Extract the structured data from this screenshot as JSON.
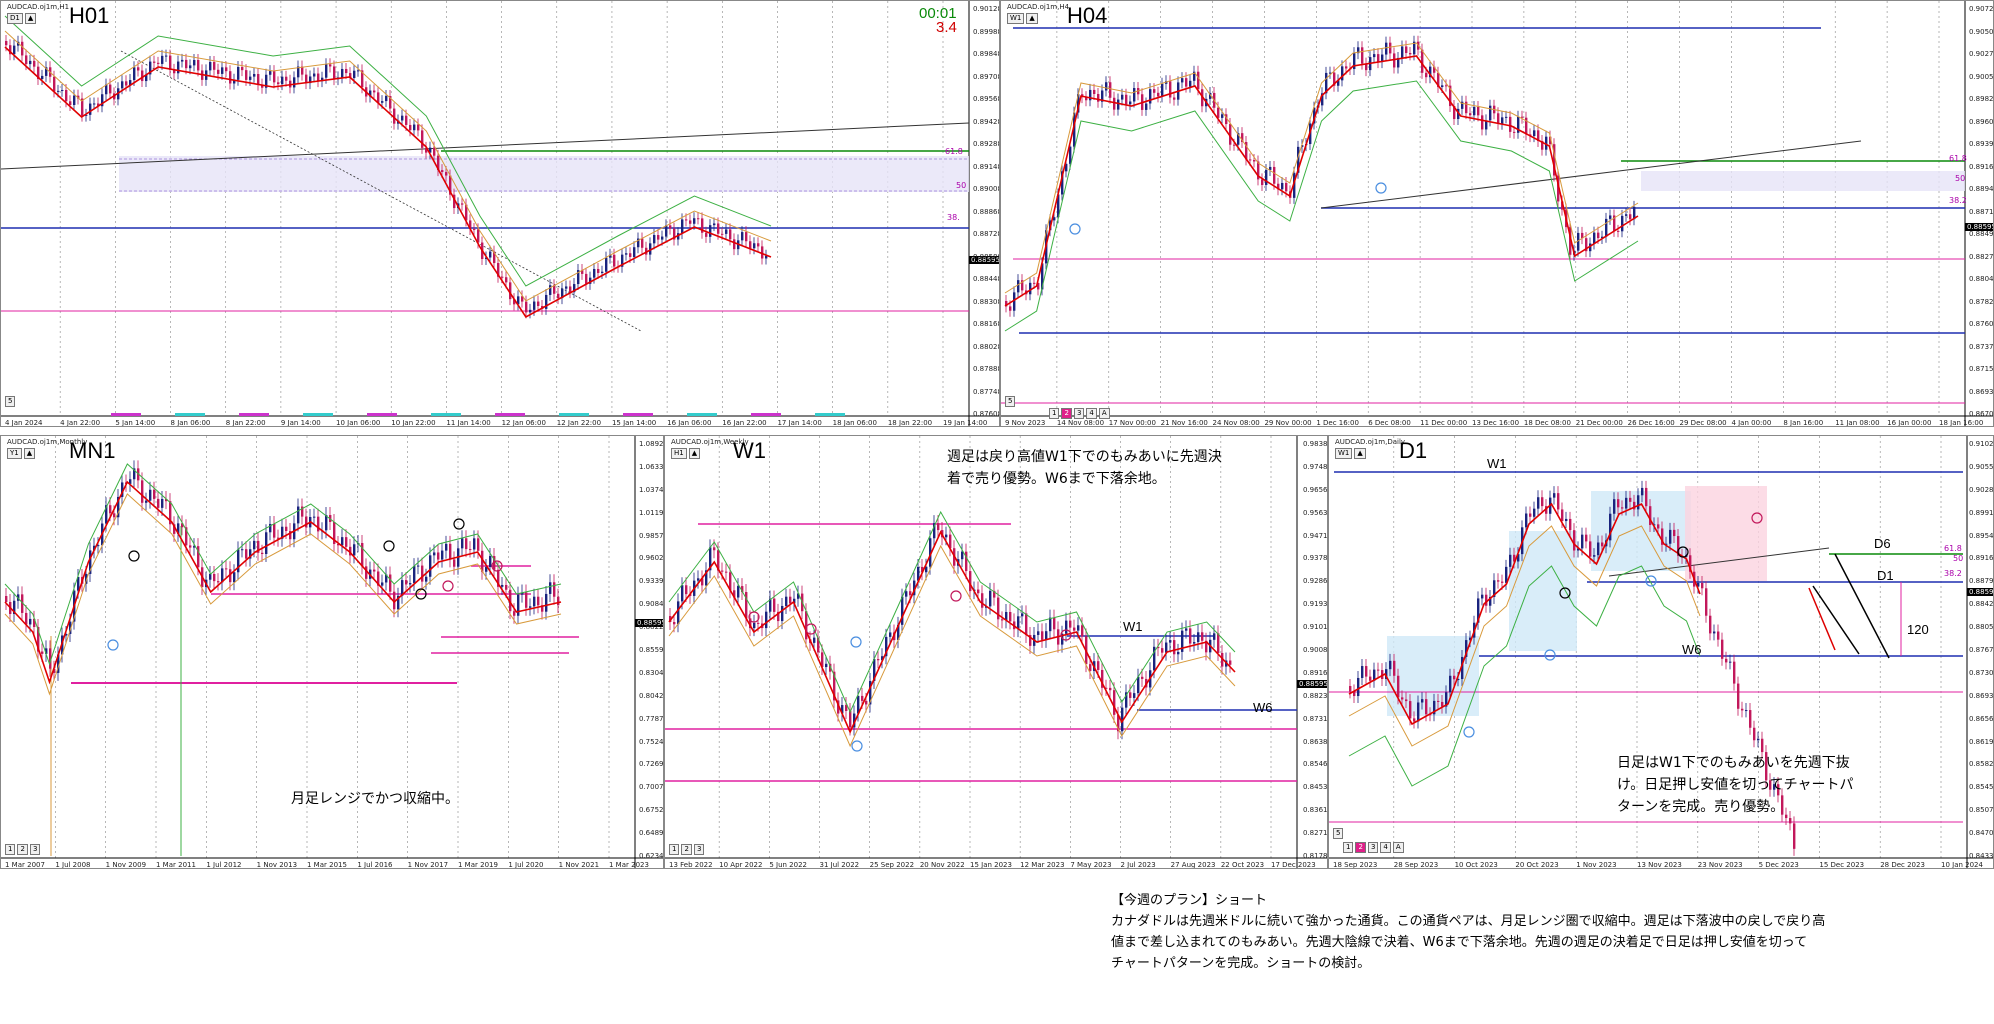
{
  "panels": {
    "h1": {
      "symbol": "AUDCAD.oj1m,H1",
      "label": "H01",
      "timer": "00:01",
      "spread": "3.4",
      "price_tag": "0.88595",
      "fib_a": "61.8",
      "fib_b": "50",
      "fib_c": "38.",
      "prices": [
        "0.90128",
        "0.89988",
        "0.89848",
        "0.89708",
        "0.89568",
        "0.89428",
        "0.89288",
        "0.89148",
        "0.89008",
        "0.88868",
        "0.88728",
        "0.88588",
        "0.88448",
        "0.88308",
        "0.88168",
        "0.88028",
        "0.87888",
        "0.87748",
        "0.87608"
      ],
      "dates": [
        "4 Jan 2024",
        "4 Jan 22:00",
        "5 Jan 14:00",
        "8 Jan 06:00",
        "8 Jan 22:00",
        "9 Jan 14:00",
        "10 Jan 06:00",
        "10 Jan 22:00",
        "11 Jan 14:00",
        "12 Jan 06:00",
        "12 Jan 22:00",
        "15 Jan 14:00",
        "16 Jan 06:00",
        "16 Jan 22:00",
        "17 Jan 14:00",
        "18 Jan 06:00",
        "18 Jan 22:00",
        "19 Jan 14:00"
      ],
      "toolbar": [
        "D1",
        "▲"
      ],
      "bottom_tabs": [
        "5"
      ]
    },
    "h4": {
      "symbol": "AUDCAD.oj1m,H4",
      "label": "H04",
      "price_tag": "0.88595",
      "fib_a": "61.8",
      "fib_b": "50",
      "fib_c": "38.2",
      "prices": [
        "0.90727",
        "0.90502",
        "0.90277",
        "0.90052",
        "0.89827",
        "0.89602",
        "0.89392",
        "0.89167",
        "0.88942",
        "0.88717",
        "0.88497",
        "0.88272",
        "0.88047",
        "0.87827",
        "0.87602",
        "0.87377",
        "0.87152",
        "0.86932",
        "0.86707"
      ],
      "dates": [
        "9 Nov 2023",
        "14 Nov 08:00",
        "17 Nov 00:00",
        "21 Nov 16:00",
        "24 Nov 08:00",
        "29 Nov 00:00",
        "1 Dec 16:00",
        "6 Dec 08:00",
        "11 Dec 00:00",
        "13 Dec 16:00",
        "18 Dec 08:00",
        "21 Dec 00:00",
        "26 Dec 16:00",
        "29 Dec 08:00",
        "4 Jan 00:00",
        "8 Jan 16:00",
        "11 Jan 08:00",
        "16 Jan 00:00",
        "18 Jan 16:00"
      ],
      "toolbar": [
        "W1",
        "▲"
      ],
      "bottom_tabs": [
        "5",
        "1",
        "2",
        "3",
        "4",
        "A"
      ]
    },
    "mn1": {
      "symbol": "AUDCAD.oj1m,Monthly",
      "label": "MN1",
      "price_tag": "0.88595",
      "note": "月足レンジでかつ収縮中。",
      "prices": [
        "1.08923",
        "1.06335",
        "1.03748",
        "1.01198",
        "0.98573",
        "0.96023",
        "0.93398",
        "0.90848",
        "0.88223",
        "0.85598",
        "0.83048",
        "0.80423",
        "0.77873",
        "0.75248",
        "0.72698",
        "0.70073",
        "0.67523",
        "0.64898",
        "0.62348"
      ],
      "dates": [
        "1 Mar 2007",
        "1 Jul 2008",
        "1 Nov 2009",
        "1 Mar 2011",
        "1 Jul 2012",
        "1 Nov 2013",
        "1 Mar 2015",
        "1 Jul 2016",
        "1 Nov 2017",
        "1 Mar 2019",
        "1 Jul 2020",
        "1 Nov 2021",
        "1 Mar 2023"
      ],
      "toolbar": [
        "Y1",
        "▲"
      ],
      "bottom_tabs": [
        "1",
        "2",
        "3"
      ]
    },
    "w1": {
      "symbol": "AUDCAD.oj1m,Weekly",
      "label": "W1",
      "price_tag": "0.88595",
      "note": "週足は戻り高値W1下でのもみあいに先週決着で売り優勢。W6まで下落余地。",
      "line_w1": "W1",
      "line_w6": "W6",
      "prices": [
        "0.98386",
        "0.97486",
        "0.96561",
        "0.95636",
        "0.94711",
        "0.93786",
        "0.92861",
        "0.91936",
        "0.91011",
        "0.90086",
        "0.89161",
        "0.88236",
        "0.87311",
        "0.86386",
        "0.85461",
        "0.84536",
        "0.83611",
        "0.82711",
        "0.81786"
      ],
      "dates": [
        "13 Feb 2022",
        "10 Apr 2022",
        "5 Jun 2022",
        "31 Jul 2022",
        "25 Sep 2022",
        "20 Nov 2022",
        "15 Jan 2023",
        "12 Mar 2023",
        "7 May 2023",
        "2 Jul 2023",
        "27 Aug 2023",
        "22 Oct 2023",
        "17 Dec 2023"
      ],
      "toolbar": [
        "H1",
        "▲"
      ],
      "bottom_tabs": [
        "1",
        "2",
        "3"
      ]
    },
    "d1": {
      "symbol": "AUDCAD.oj1m,Daily",
      "label": "D1",
      "price_tag": "0.88595",
      "fib_a": "61.8",
      "fib_b": "50",
      "fib_c": "38.2",
      "note": "日足はW1下でのもみあいを先週下抜け。日足押し安値を切ってチャートパターンを完成。売り優勢。",
      "line_w1": "W1",
      "line_d6": "D6",
      "line_d1": "D1",
      "line_w6": "W6",
      "pips": "120",
      "prices": [
        "0.91026",
        "0.90556",
        "0.90286",
        "0.89916",
        "0.89546",
        "0.89166",
        "0.88796",
        "0.88426",
        "0.88056",
        "0.87676",
        "0.87306",
        "0.86936",
        "0.86566",
        "0.86196",
        "0.85826",
        "0.85456",
        "0.85076",
        "0.84706",
        "0.84336"
      ],
      "dates": [
        "18 Sep 2023",
        "28 Sep 2023",
        "10 Oct 2023",
        "20 Oct 2023",
        "1 Nov 2023",
        "13 Nov 2023",
        "23 Nov 2023",
        "5 Dec 2023",
        "15 Dec 2023",
        "28 Dec 2023",
        "10 Jan 2024"
      ],
      "toolbar": [
        "W1",
        "▲"
      ],
      "bottom_tabs": [
        "5",
        "1",
        "2",
        "3",
        "4",
        "A"
      ]
    }
  },
  "plan": {
    "heading": "【今週のプラン】ショート",
    "line1": "カナダドルは先週米ドルに続いて強かった通貨。この通貨ペアは、月足レンジ圏で収縮中。週足は下落波中の戻しで戻り高",
    "line2": "値まで差し込まれてのもみあい。先週大陰線で決着、W6まで下落余地。先週の週足の決着足で日足は押し安値を切って",
    "line3": "チャートパターンを完成。ショートの検討。"
  },
  "colors": {
    "bull": "#1a237e",
    "bear": "#c2185b",
    "ma_fast": "#e00000",
    "ma_mid": "#d89a3c",
    "ma_slow": "#3cb043",
    "blue_line": "#1f2fb0",
    "pink_line": "#e020a0",
    "green_line": "#0a8a0a",
    "zone_blue": "#cfe8f7",
    "zone_pink": "#fbd3e0",
    "zone_lavender": "#e6e4f8"
  }
}
